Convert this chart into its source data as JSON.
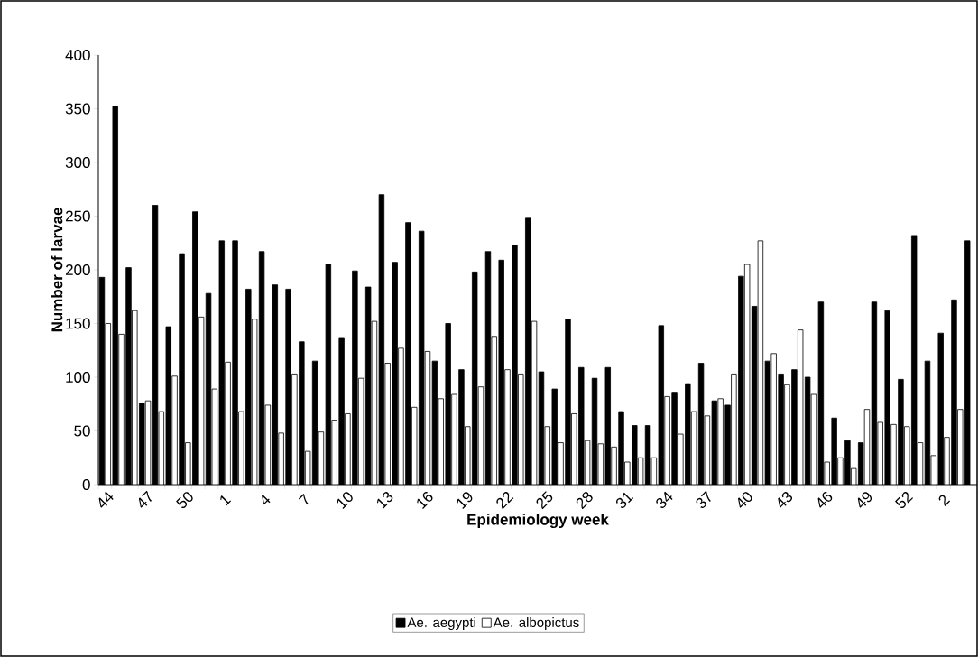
{
  "chart_data": {
    "type": "bar",
    "xlabel": "Epidemiology week",
    "ylabel": "Number of larvae",
    "categories": [
      "44",
      null,
      null,
      "47",
      null,
      null,
      "50",
      null,
      null,
      "1",
      null,
      null,
      "4",
      null,
      null,
      "7",
      null,
      null,
      "10",
      null,
      null,
      "13",
      null,
      null,
      "16",
      null,
      null,
      "19",
      null,
      null,
      "22",
      null,
      null,
      "25",
      null,
      null,
      "28",
      null,
      null,
      "31",
      null,
      null,
      "34",
      null,
      null,
      "37",
      null,
      null,
      "40",
      null,
      null,
      "43",
      null,
      null,
      "46",
      null,
      null,
      "49",
      null,
      null,
      "52",
      null,
      null,
      "2",
      null,
      null
    ],
    "series": [
      {
        "name": "Ae. aegypti",
        "color": "#000000",
        "values": [
          193,
          352,
          202,
          76,
          260,
          147,
          215,
          254,
          178,
          227,
          227,
          182,
          217,
          186,
          182,
          133,
          115,
          205,
          137,
          199,
          184,
          270,
          207,
          244,
          236,
          115,
          150,
          107,
          198,
          217,
          209,
          223,
          248,
          105,
          89,
          154,
          109,
          99,
          109,
          68,
          55,
          55,
          148,
          86,
          94,
          113,
          78,
          74,
          194,
          166,
          115,
          103,
          107,
          100,
          170,
          62,
          41,
          39,
          170,
          162,
          98,
          232,
          115,
          141,
          172,
          227
        ]
      },
      {
        "name": "Ae. albopictus",
        "color": "#ffffff",
        "values": [
          150,
          140,
          162,
          78,
          68,
          101,
          39,
          156,
          89,
          114,
          68,
          154,
          74,
          48,
          103,
          31,
          49,
          60,
          66,
          99,
          152,
          113,
          127,
          72,
          124,
          80,
          84,
          54,
          91,
          138,
          107,
          103,
          152,
          54,
          39,
          66,
          41,
          38,
          35,
          21,
          25,
          25,
          82,
          47,
          68,
          64,
          80,
          103,
          205,
          227,
          122,
          93,
          144,
          84,
          21,
          25,
          15,
          70,
          58,
          56,
          54,
          39,
          27,
          44,
          70,
          null
        ]
      }
    ],
    "ylim": [
      0,
      400
    ],
    "yticks": [
      0,
      50,
      100,
      150,
      200,
      250,
      300,
      350,
      400
    ],
    "grid": false,
    "legend": "bottom"
  }
}
